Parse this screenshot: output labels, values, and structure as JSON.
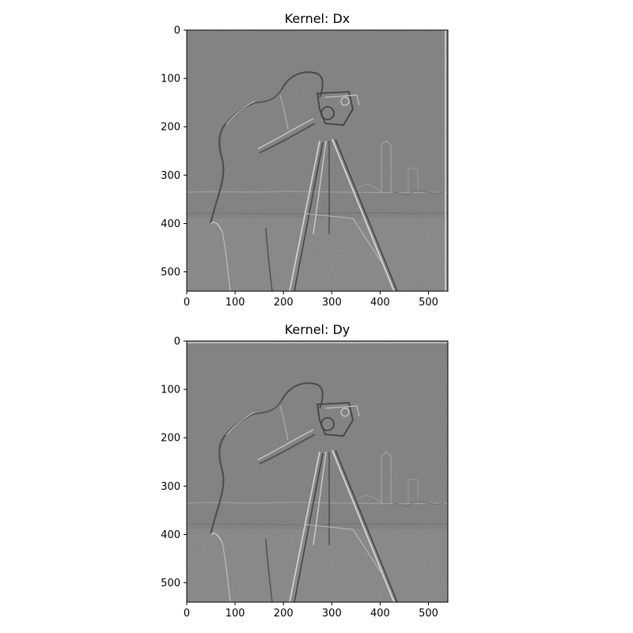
{
  "figure": {
    "background": "#ffffff",
    "axis_color": "#000000",
    "panel_gray": "#808080"
  },
  "panels": [
    {
      "title": "Kernel: Dx",
      "kernel": "Dx",
      "x_ticks": [
        "0",
        "100",
        "200",
        "300",
        "400",
        "500"
      ],
      "y_ticks": [
        "0",
        "100",
        "200",
        "300",
        "400",
        "500"
      ],
      "image_extent": [
        0,
        540
      ]
    },
    {
      "title": "Kernel: Dy",
      "kernel": "Dy",
      "x_ticks": [
        "0",
        "100",
        "200",
        "300",
        "400",
        "500"
      ],
      "y_ticks": [
        "0",
        "100",
        "200",
        "300",
        "400",
        "500"
      ],
      "image_extent": [
        0,
        540
      ]
    }
  ]
}
